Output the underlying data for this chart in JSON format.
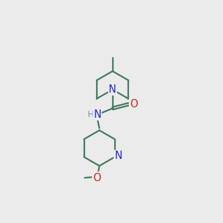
{
  "bg_color": "#ebebeb",
  "bond_color": "#3d7a5a",
  "N_color": "#2222cc",
  "O_color": "#cc2222",
  "H_color": "#6a9a9a",
  "lw": 1.6,
  "fs": 9.5
}
